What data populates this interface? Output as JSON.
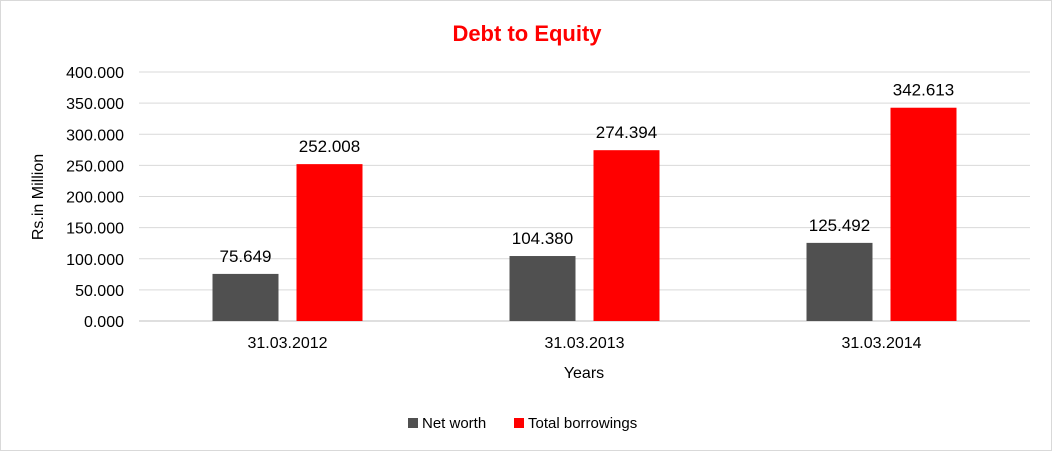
{
  "chart_data": {
    "type": "bar",
    "title": "Debt to Equity",
    "xlabel": "Years",
    "ylabel": "Rs.in Million",
    "categories": [
      "31.03.2012",
      "31.03.2013",
      "31.03.2014"
    ],
    "series": [
      {
        "name": "Net worth",
        "values": [
          75.649,
          104.38,
          125.492
        ],
        "labels": [
          "75.649",
          "104.380",
          "125.492"
        ],
        "color": "#505050"
      },
      {
        "name": "Total borrowings",
        "values": [
          252.008,
          274.394,
          342.613
        ],
        "labels": [
          "252.008",
          "274.394",
          "342.613"
        ],
        "color": "#ff0000"
      }
    ],
    "ylim": [
      0,
      400
    ],
    "yticks": [
      "0.000",
      "50.000",
      "100.000",
      "150.000",
      "200.000",
      "250.000",
      "300.000",
      "350.000",
      "400.000"
    ],
    "grid": true,
    "legend_position": "bottom",
    "title_color": "#ff0000"
  }
}
